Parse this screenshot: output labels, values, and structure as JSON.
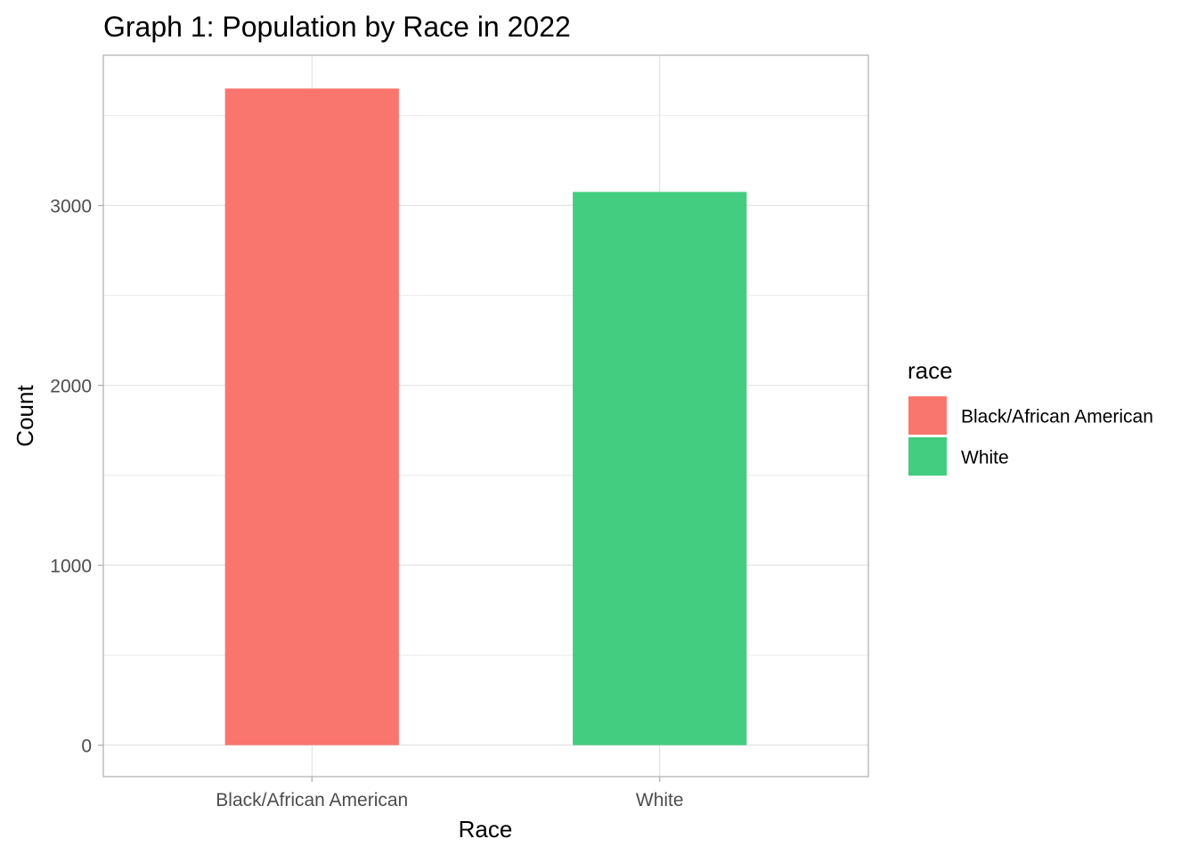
{
  "chart_data": {
    "type": "bar",
    "title": "Graph 1: Population by Race in 2022",
    "xlabel": "Race",
    "ylabel": "Count",
    "categories": [
      "Black/African American",
      "White"
    ],
    "values": [
      3650,
      3075
    ],
    "colors": [
      "#F8766D",
      "#43CD80"
    ],
    "ylim": [
      -175,
      3835
    ],
    "yticks": [
      0,
      1000,
      2000,
      3000
    ],
    "ytick_labels": [
      "0",
      "1000",
      "2000",
      "3000"
    ],
    "grid": true,
    "legend": {
      "title": "race",
      "position": "right",
      "entries": [
        "Black/African American",
        "White"
      ]
    }
  }
}
